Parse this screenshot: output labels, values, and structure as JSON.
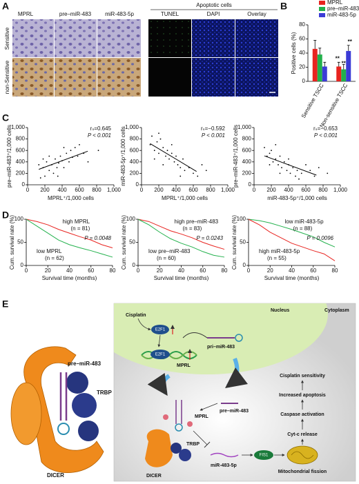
{
  "panels": {
    "a": "A",
    "b": "B",
    "c": "C",
    "d": "D",
    "e": "E"
  },
  "panel_a": {
    "columns": [
      "MPRL",
      "pre–miR-483",
      "miR-483-5p"
    ],
    "rows": [
      "Sensitive",
      "non-Sensitive"
    ],
    "apoptosis_title": "Apoptotic cells",
    "apoptosis_columns": [
      "TUNEL",
      "DAPI",
      "Overlay"
    ]
  },
  "chart_data": [
    {
      "type": "bar",
      "y_label": "Positive cells (%)",
      "categories": [
        "Sensitive TSCC",
        "Non-sensitive TSCC"
      ],
      "series": [
        {
          "name": "MPRL",
          "color": "#e8231f",
          "values": [
            46,
            21
          ],
          "errors": [
            12,
            6
          ]
        },
        {
          "name": "pre–miR-483",
          "color": "#22b14c",
          "values": [
            38,
            17
          ],
          "errors": [
            9,
            7
          ]
        },
        {
          "name": "miR-483-5p",
          "color": "#3b3bd6",
          "values": [
            21,
            43
          ],
          "errors": [
            6,
            8
          ]
        }
      ],
      "annotations": [
        "**",
        "**",
        "**"
      ],
      "ylim": [
        0,
        80
      ],
      "yticks": [
        0,
        20,
        40,
        60,
        80
      ]
    },
    {
      "type": "scatter",
      "x_label": "MPRL⁺/1,000 cells",
      "y_label": "pre–miR-483⁺/1,000 cells",
      "stat": "rₛ=0.645",
      "p_value": "P < 0.001",
      "color": "#000000",
      "x": [
        150,
        180,
        200,
        220,
        250,
        280,
        300,
        320,
        340,
        360,
        380,
        400,
        420,
        450,
        480,
        500,
        520,
        550,
        580,
        600,
        650,
        700,
        250,
        180,
        420,
        820,
        350,
        130
      ],
      "values": [
        120,
        300,
        150,
        400,
        250,
        350,
        200,
        450,
        300,
        380,
        500,
        420,
        300,
        550,
        400,
        600,
        480,
        650,
        500,
        700,
        550,
        400,
        500,
        450,
        650,
        600,
        150,
        350
      ],
      "xlim": [
        0,
        1000
      ],
      "xticks": [
        0,
        200,
        400,
        600,
        800,
        {
          "value": 1000,
          "label": "1,000"
        }
      ],
      "ylim": [
        0,
        1000
      ],
      "yticks": [
        0,
        200,
        400,
        600,
        800,
        {
          "value": 1000,
          "label": "1,000"
        }
      ]
    },
    {
      "type": "scatter",
      "x_label": "MPRL⁺/1,000 cells",
      "y_label": "miR-483-5p⁺/1,000 cells",
      "stat": "rₛ=−0.592",
      "p_value": "P < 0.001",
      "color": "#000000",
      "x": [
        100,
        120,
        150,
        180,
        200,
        220,
        250,
        280,
        300,
        320,
        350,
        380,
        400,
        420,
        450,
        480,
        500,
        550,
        600,
        650,
        700,
        150,
        250,
        350,
        200,
        750,
        450
      ],
      "values": [
        700,
        850,
        600,
        750,
        550,
        800,
        650,
        500,
        600,
        450,
        550,
        400,
        500,
        350,
        300,
        450,
        250,
        300,
        200,
        150,
        350,
        450,
        350,
        700,
        900,
        250,
        150
      ],
      "xlim": [
        0,
        1000
      ],
      "xticks": [
        0,
        200,
        400,
        600,
        800,
        {
          "value": 1000,
          "label": "1,000"
        }
      ],
      "ylim": [
        0,
        1000
      ],
      "yticks": [
        0,
        200,
        400,
        600,
        800,
        {
          "value": 1000,
          "label": "1,000"
        }
      ]
    },
    {
      "type": "scatter",
      "x_label": "miR-483-5p⁺/1,000 cells",
      "y_label": "pre–miR-483⁺/1,000 cells",
      "stat": "rₛ=−0.653",
      "p_value": "P < 0.001",
      "color": "#000000",
      "x": [
        120,
        150,
        180,
        200,
        220,
        250,
        280,
        300,
        320,
        350,
        380,
        400,
        420,
        450,
        480,
        500,
        520,
        550,
        600,
        650,
        700,
        180,
        250,
        300,
        400,
        750,
        850
      ],
      "values": [
        650,
        500,
        550,
        600,
        400,
        450,
        350,
        500,
        300,
        400,
        250,
        350,
        200,
        300,
        150,
        250,
        100,
        200,
        350,
        250,
        150,
        350,
        700,
        200,
        450,
        300,
        200
      ],
      "xlim": [
        0,
        1000
      ],
      "xticks": [
        0,
        200,
        400,
        600,
        800,
        {
          "value": 1000,
          "label": "1,000"
        }
      ],
      "ylim": [
        0,
        1000
      ],
      "yticks": [
        0,
        200,
        400,
        600,
        800,
        {
          "value": 1000,
          "label": "1,000"
        }
      ]
    },
    {
      "type": "line",
      "x_label": "Survival time (months)",
      "y_label": "Cum. survival rate (%)",
      "p_value": "P = 0.0048",
      "series": [
        {
          "name": "high MPRL",
          "n_label": "(n = 81)",
          "color": "#e8231f",
          "x": [
            0,
            10,
            20,
            30,
            40,
            50,
            60,
            70,
            80
          ],
          "values": [
            100,
            95,
            88,
            78,
            70,
            62,
            55,
            45,
            38
          ]
        },
        {
          "name": "low MPRL",
          "n_label": "(n = 62)",
          "color": "#22b14c",
          "x": [
            0,
            10,
            20,
            30,
            40,
            50,
            60,
            70,
            80
          ],
          "values": [
            100,
            85,
            70,
            55,
            45,
            38,
            32,
            25,
            18
          ]
        }
      ],
      "xlim": [
        0,
        80
      ],
      "xticks": [
        0,
        20,
        40,
        60,
        80
      ],
      "ylim": [
        0,
        100
      ],
      "yticks": [
        0,
        50,
        100
      ]
    },
    {
      "type": "line",
      "x_label": "Survival time (months)",
      "y_label": "Cum. survival rate (%)",
      "p_value": "P = 0.0243",
      "series": [
        {
          "name": "high pre–miR-483",
          "n_label": "(n = 83)",
          "color": "#e8231f",
          "x": [
            0,
            10,
            20,
            30,
            40,
            50,
            60,
            70,
            80
          ],
          "values": [
            100,
            95,
            85,
            75,
            68,
            60,
            50,
            42,
            35
          ]
        },
        {
          "name": "low pre–miR-483",
          "n_label": "(n = 60)",
          "color": "#22b14c",
          "x": [
            0,
            10,
            20,
            30,
            40,
            50,
            60,
            70,
            80
          ],
          "values": [
            100,
            88,
            72,
            58,
            48,
            40,
            30,
            22,
            18
          ]
        }
      ],
      "xlim": [
        0,
        80
      ],
      "xticks": [
        0,
        20,
        40,
        60,
        80
      ],
      "ylim": [
        0,
        100
      ],
      "yticks": [
        0,
        50,
        100
      ]
    },
    {
      "type": "line",
      "x_label": "Survival time (months)",
      "y_label": "Cum. survival rate (%)",
      "p_value": "P = 0.0096",
      "series": [
        {
          "name": "low miR-483-5p",
          "n_label": "(n = 88)",
          "color": "#22b14c",
          "x": [
            0,
            10,
            20,
            30,
            40,
            50,
            60,
            70,
            80
          ],
          "values": [
            100,
            97,
            92,
            85,
            78,
            70,
            62,
            50,
            40
          ]
        },
        {
          "name": "high miR-483-5p",
          "n_label": "(n = 55)",
          "color": "#e8231f",
          "x": [
            0,
            10,
            20,
            30,
            40,
            50,
            60,
            70,
            80
          ],
          "values": [
            100,
            88,
            72,
            60,
            48,
            40,
            32,
            25,
            10
          ]
        }
      ],
      "xlim": [
        0,
        80
      ],
      "xticks": [
        0,
        20,
        40,
        60,
        80
      ],
      "ylim": [
        0,
        100
      ],
      "yticks": [
        0,
        50,
        100
      ]
    }
  ],
  "diagram": {
    "left": {
      "pre_mirna": "pre–miR-483",
      "trbp": "TRBP",
      "dicer": "DICER"
    },
    "nucleus": {
      "region": "Nucleus",
      "cisplatin": "Cisplatin",
      "e2f1": "E2F1",
      "e2f1_bound": "E2F1",
      "mprl": "MPRL",
      "pri_mirna": "pri–miR-483"
    },
    "cytoplasm": {
      "region": "Cytoplasm",
      "pre_mirna": "pre–miR-483",
      "mprl": "MPRL",
      "trbp": "TRBP",
      "dicer": "DICER",
      "mature": "miR-483-5p",
      "fis1": "FIS1",
      "fission": "Mitochondrial fission",
      "cytc": "Cyt-c release",
      "caspase": "Caspase activation",
      "apoptosis": "Increased apoptosis",
      "sensitivity": "Cisplatin sensitivity"
    }
  }
}
